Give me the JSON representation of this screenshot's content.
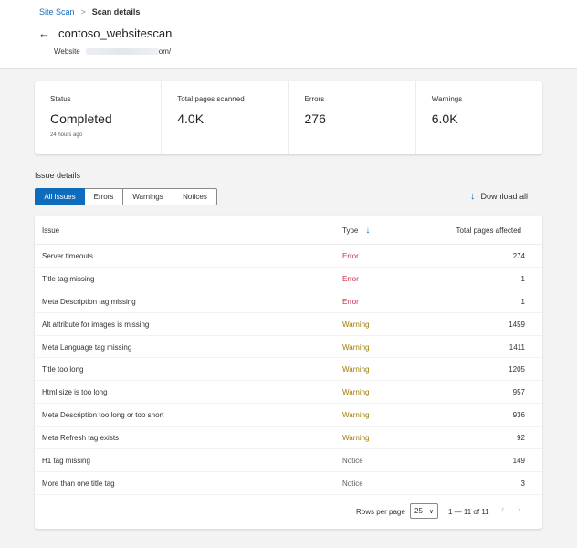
{
  "breadcrumb": {
    "parent": "Site Scan",
    "separator": ">",
    "current": "Scan details"
  },
  "header": {
    "back_icon": "arrow-left-icon",
    "title": "contoso_websitescan",
    "website_label": "Website",
    "website_suffix": "om/"
  },
  "stats": [
    {
      "label": "Status",
      "value": "Completed",
      "sub": "24 hours ago"
    },
    {
      "label": "Total pages scanned",
      "value": "4.0K",
      "sub": ""
    },
    {
      "label": "Errors",
      "value": "276",
      "sub": ""
    },
    {
      "label": "Warnings",
      "value": "6.0K",
      "sub": ""
    }
  ],
  "issue_details": {
    "heading": "Issue details",
    "tabs": [
      {
        "label": "All Issues",
        "active": true
      },
      {
        "label": "Errors",
        "active": false
      },
      {
        "label": "Warnings",
        "active": false
      },
      {
        "label": "Notices",
        "active": false
      }
    ],
    "download_label": "Download all"
  },
  "table": {
    "columns": {
      "issue": "Issue",
      "type": "Type",
      "pages": "Total pages affected"
    },
    "rows": [
      {
        "issue": "Server timeouts",
        "type": "Error",
        "pages": "274"
      },
      {
        "issue": "Title tag missing",
        "type": "Error",
        "pages": "1"
      },
      {
        "issue": "Meta Description tag missing",
        "type": "Error",
        "pages": "1"
      },
      {
        "issue": "Alt attribute for images is missing",
        "type": "Warning",
        "pages": "1459"
      },
      {
        "issue": "Meta Language tag missing",
        "type": "Warning",
        "pages": "1411"
      },
      {
        "issue": "Title too long",
        "type": "Warning",
        "pages": "1205"
      },
      {
        "issue": "Html size is too long",
        "type": "Warning",
        "pages": "957"
      },
      {
        "issue": "Meta Description too long or too short",
        "type": "Warning",
        "pages": "936"
      },
      {
        "issue": "Meta Refresh tag exists",
        "type": "Warning",
        "pages": "92"
      },
      {
        "issue": "H1 tag missing",
        "type": "Notice",
        "pages": "149"
      },
      {
        "issue": "More than one title tag",
        "type": "Notice",
        "pages": "3"
      }
    ]
  },
  "pagination": {
    "rows_per_page_label": "Rows per page",
    "rows_per_page": "25",
    "range": "1 — 11 of 11"
  },
  "colors": {
    "accent": "#0f6cbd",
    "error": "#c4314b",
    "warning": "#9d7a00",
    "notice": "#605e5c"
  }
}
